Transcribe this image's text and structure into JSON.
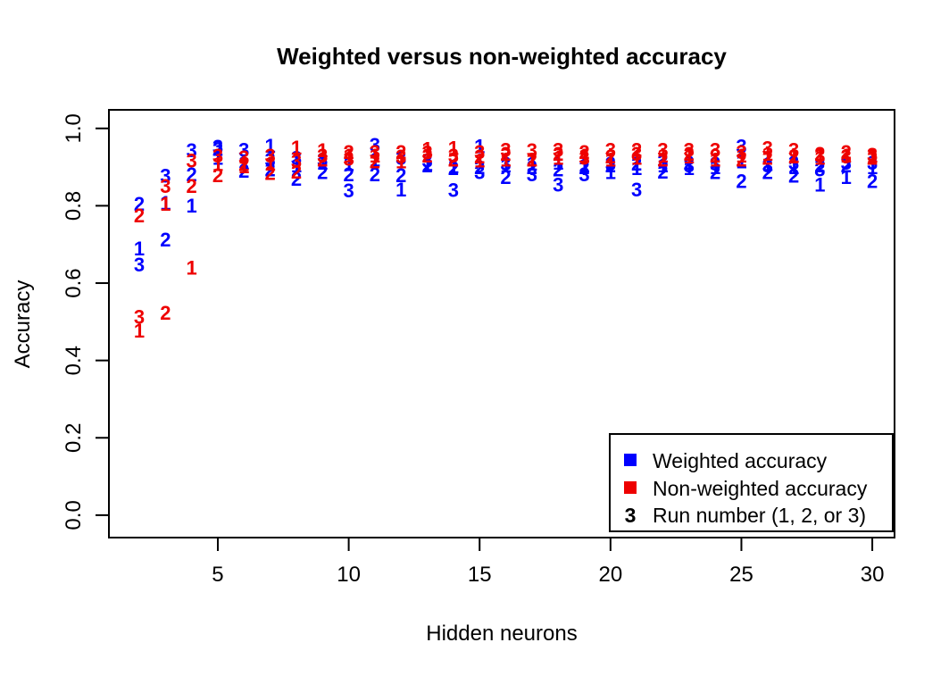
{
  "chart": {
    "title": "Weighted versus non-weighted accuracy",
    "xlabel": "Hidden neurons",
    "ylabel": "Accuracy",
    "colors": {
      "weighted": "#0000FF",
      "nonweighted": "#EE0000",
      "axis": "#000000",
      "background": "#FFFFFF"
    },
    "legend": {
      "items": [
        {
          "marker": "square",
          "color": "#0000FF",
          "label": "Weighted accuracy"
        },
        {
          "marker": "square",
          "color": "#EE0000",
          "label": "Non-weighted accuracy"
        },
        {
          "marker": "text",
          "symbol": "3",
          "label": "Run number (1, 2, or 3)"
        }
      ]
    }
  },
  "chart_data": {
    "type": "scatter",
    "title": "Weighted versus non-weighted accuracy",
    "xlabel": "Hidden neurons",
    "ylabel": "Accuracy",
    "x": [
      2,
      3,
      4,
      5,
      6,
      7,
      8,
      9,
      10,
      11,
      12,
      13,
      14,
      15,
      16,
      17,
      18,
      19,
      20,
      21,
      22,
      23,
      24,
      25,
      26,
      27,
      28,
      29,
      30
    ],
    "xticks": [
      5,
      10,
      15,
      20,
      25,
      30
    ],
    "yticks": [
      0.0,
      0.2,
      0.4,
      0.6,
      0.8,
      1.0
    ],
    "ytick_labels": [
      "0.0",
      "0.2",
      "0.4",
      "0.6",
      "0.8",
      "1.0"
    ],
    "xlim": [
      0.84,
      30.85
    ],
    "ylim": [
      -0.058,
      1.048
    ],
    "grid": false,
    "legend_position": "bottom-right",
    "point_style": "run-number-digits",
    "series": [
      {
        "name": "Weighted accuracy run 1",
        "glyph": "1",
        "color": "#0000FF",
        "values": [
          0.69,
          0.808,
          0.801,
          0.924,
          0.912,
          0.956,
          0.905,
          0.912,
          0.908,
          0.92,
          0.843,
          0.908,
          0.902,
          0.954,
          0.905,
          0.91,
          0.912,
          0.905,
          0.887,
          0.898,
          0.905,
          0.898,
          0.9,
          0.915,
          0.908,
          0.9,
          0.855,
          0.875,
          0.9
        ]
      },
      {
        "name": "Weighted accuracy run 2",
        "glyph": "2",
        "color": "#0000FF",
        "values": [
          0.805,
          0.713,
          0.882,
          0.947,
          0.891,
          0.895,
          0.87,
          0.887,
          0.882,
          0.882,
          0.88,
          0.905,
          0.898,
          0.9,
          0.875,
          0.9,
          0.894,
          0.9,
          0.905,
          0.91,
          0.889,
          0.912,
          0.887,
          0.864,
          0.887,
          0.878,
          0.905,
          0.905,
          0.864
        ]
      },
      {
        "name": "Weighted accuracy run 3",
        "glyph": "3",
        "color": "#0000FF",
        "values": [
          0.648,
          0.878,
          0.944,
          0.953,
          0.945,
          0.92,
          0.924,
          0.92,
          0.84,
          0.958,
          0.924,
          0.918,
          0.841,
          0.887,
          0.91,
          0.882,
          0.855,
          0.882,
          0.91,
          0.843,
          0.915,
          0.905,
          0.91,
          0.955,
          0.905,
          0.912,
          0.894,
          0.912,
          0.912
        ]
      },
      {
        "name": "Non-weighted accuracy run 1",
        "glyph": "1",
        "color": "#EE0000",
        "values": [
          0.478,
          0.806,
          0.641,
          0.908,
          0.903,
          0.91,
          0.951,
          0.944,
          0.93,
          0.93,
          0.915,
          0.947,
          0.95,
          0.918,
          0.92,
          0.92,
          0.925,
          0.93,
          0.92,
          0.925,
          0.93,
          0.928,
          0.92,
          0.93,
          0.935,
          0.93,
          0.925,
          0.93,
          0.93
        ]
      },
      {
        "name": "Non-weighted accuracy run 2",
        "glyph": "2",
        "color": "#EE0000",
        "values": [
          0.775,
          0.524,
          0.852,
          0.88,
          0.908,
          0.885,
          0.889,
          0.92,
          0.94,
          0.915,
          0.94,
          0.93,
          0.92,
          0.928,
          0.935,
          0.92,
          0.935,
          0.94,
          0.928,
          0.945,
          0.92,
          0.935,
          0.93,
          0.92,
          0.925,
          0.928,
          0.935,
          0.94,
          0.925
        ]
      },
      {
        "name": "Non-weighted accuracy run 3",
        "glyph": "3",
        "color": "#EE0000",
        "values": [
          0.513,
          0.852,
          0.917,
          0.93,
          0.926,
          0.93,
          0.916,
          0.93,
          0.922,
          0.94,
          0.928,
          0.938,
          0.93,
          0.94,
          0.945,
          0.944,
          0.945,
          0.925,
          0.945,
          0.935,
          0.945,
          0.945,
          0.945,
          0.94,
          0.95,
          0.945,
          0.93,
          0.928,
          0.933
        ]
      }
    ]
  }
}
